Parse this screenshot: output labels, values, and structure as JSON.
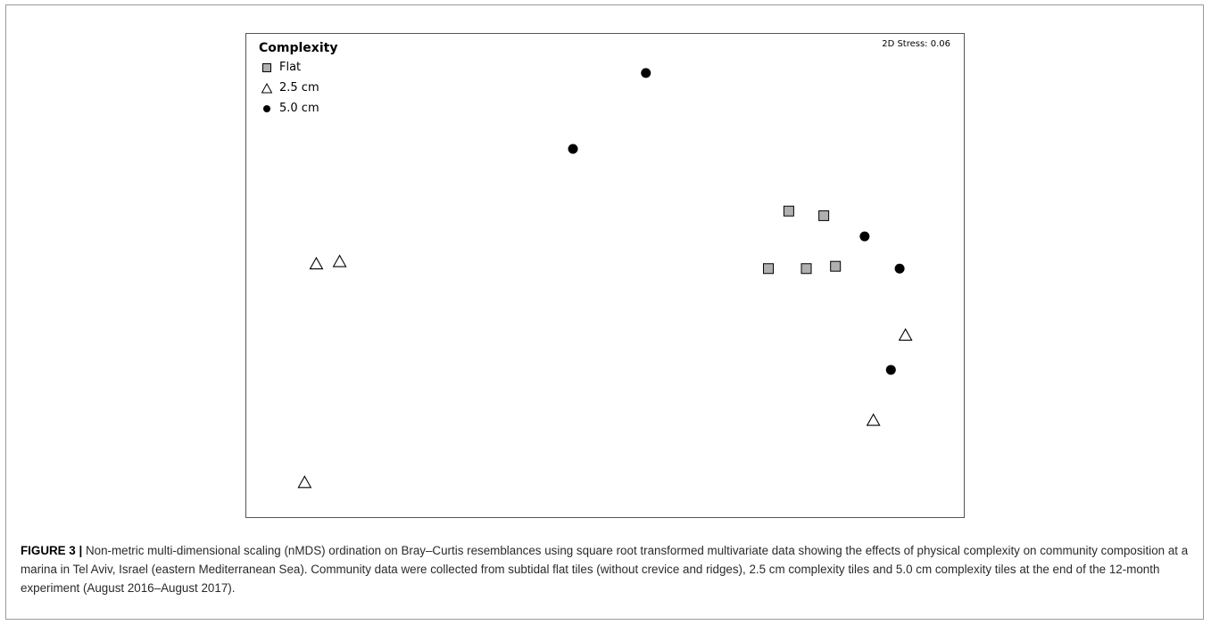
{
  "chart_data": {
    "type": "scatter",
    "title": "",
    "xlabel": "",
    "ylabel": "",
    "grid": false,
    "legend_placement": "top-left",
    "legend_title": "Complexity",
    "annotation": "2D Stress: 0.06",
    "series": [
      {
        "name": "Flat",
        "marker": "square",
        "color": "#b0b0b0",
        "points": [
          [
            0.62,
            0.4
          ],
          [
            0.74,
            0.38
          ],
          [
            0.55,
            0.15
          ],
          [
            0.68,
            0.15
          ],
          [
            0.78,
            0.16
          ]
        ]
      },
      {
        "name": "2.5 cm",
        "marker": "triangle",
        "color": "#ffffff",
        "points": [
          [
            -1.0,
            0.17
          ],
          [
            -0.92,
            0.18
          ],
          [
            -1.04,
            -0.78
          ],
          [
            1.02,
            -0.14
          ],
          [
            0.91,
            -0.51
          ]
        ]
      },
      {
        "name": "5.0 cm",
        "marker": "circle",
        "color": "#000000",
        "points": [
          [
            0.13,
            1.0
          ],
          [
            -0.12,
            0.67
          ],
          [
            0.88,
            0.29
          ],
          [
            1.0,
            0.15
          ],
          [
            0.97,
            -0.29
          ]
        ]
      }
    ],
    "xlim": [
      -1.24,
      1.22
    ],
    "ylim": [
      -0.93,
      1.17
    ]
  },
  "caption": {
    "label": "FIGURE 3 |",
    "text": " Non-metric multi-dimensional scaling (nMDS) ordination on Bray–Curtis resemblances using square root transformed multivariate data showing the effects of physical complexity on community composition at a marina in Tel Aviv, Israel (eastern Mediterranean Sea). Community data were collected from subtidal flat tiles (without crevice and ridges), 2.5 cm complexity tiles and 5.0 cm complexity tiles at the end of the 12-month experiment (August 2016–August 2017)."
  }
}
